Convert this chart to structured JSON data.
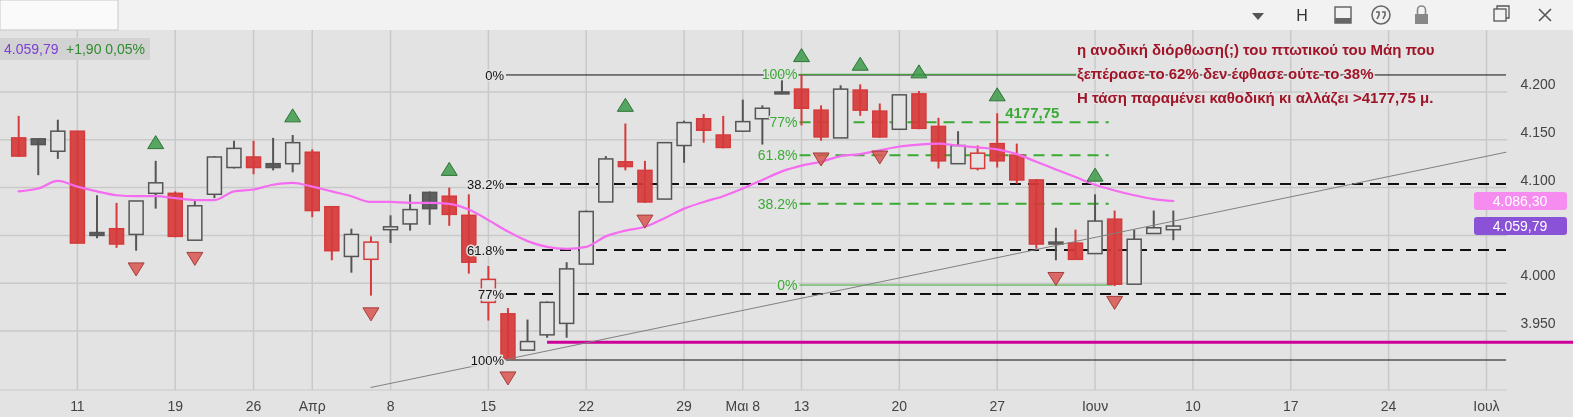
{
  "chart_data": {
    "type": "candlestick",
    "categories": [
      null,
      null,
      null,
      "11",
      null,
      null,
      null,
      null,
      "19",
      null,
      null,
      null,
      "26",
      null,
      null,
      "Απρ",
      null,
      null,
      null,
      "8",
      null,
      null,
      null,
      null,
      "15",
      null,
      null,
      null,
      null,
      "22",
      null,
      null,
      null,
      null,
      "29",
      null,
      null,
      "Μαι 8",
      null,
      null,
      "13",
      null,
      null,
      null,
      null,
      "20",
      null,
      null,
      null,
      null,
      "27",
      null,
      null,
      null,
      null,
      "Ιουν",
      null,
      null,
      null,
      null,
      "10",
      null,
      null,
      null,
      null,
      "17",
      null,
      null,
      null,
      null,
      "24",
      null,
      null,
      null,
      null,
      "Ιουλ",
      null
    ],
    "ohlc": [
      [
        4152,
        4175,
        4132,
        4133
      ],
      [
        4151,
        4151,
        4113,
        4145
      ],
      [
        4138,
        4171,
        4130,
        4159
      ],
      [
        4159,
        4159,
        4042,
        4042
      ],
      [
        4053,
        4092,
        4047,
        4050
      ],
      [
        4057,
        4084,
        4037,
        4041
      ],
      [
        4051,
        4086,
        4034,
        4086
      ],
      [
        4094,
        4128,
        4078,
        4105
      ],
      [
        4094,
        4096,
        4048,
        4049
      ],
      [
        4045,
        4086,
        4045,
        4081
      ],
      [
        4093,
        4133,
        4089,
        4132
      ],
      [
        4121,
        4149,
        4120,
        4141
      ],
      [
        4132,
        4149,
        4114,
        4121
      ],
      [
        4125,
        4152,
        4118,
        4121
      ],
      [
        4125,
        4155,
        4116,
        4147
      ],
      [
        4137,
        4140,
        4069,
        4076
      ],
      [
        4080,
        4080,
        4024,
        4034
      ],
      [
        4028,
        4057,
        4011,
        4051
      ],
      [
        4025,
        4049,
        3987,
        4043
      ],
      [
        4056,
        4071,
        4042,
        4059
      ],
      [
        4062,
        4093,
        4055,
        4077
      ],
      [
        4095,
        4096,
        4061,
        4078
      ],
      [
        4091,
        4100,
        4060,
        4072
      ],
      [
        4071,
        4093,
        4010,
        4022
      ],
      [
        3980,
        4018,
        3961,
        4004
      ],
      [
        3968,
        3974,
        3920,
        3921
      ],
      [
        3930,
        3962,
        3930,
        3939
      ],
      [
        3946,
        3981,
        3943,
        3980
      ],
      [
        3958,
        4022,
        3943,
        4015
      ],
      [
        4020,
        4076,
        4020,
        4075
      ],
      [
        4085,
        4133,
        4085,
        4130
      ],
      [
        4127,
        4167,
        4118,
        4122
      ],
      [
        4118,
        4128,
        4084,
        4085
      ],
      [
        4088,
        4147,
        4088,
        4147
      ],
      [
        4144,
        4170,
        4126,
        4168
      ],
      [
        4172,
        4177,
        4147,
        4160
      ],
      [
        4155,
        4175,
        4141,
        4142
      ],
      [
        4159,
        4192,
        4159,
        4169
      ],
      [
        4172,
        4186,
        4145,
        4183
      ],
      [
        4200,
        4216,
        4198,
        4198
      ],
      [
        4203,
        4218,
        4165,
        4183
      ],
      [
        4181,
        4186,
        4149,
        4153
      ],
      [
        4152,
        4207,
        4152,
        4203
      ],
      [
        4202,
        4208,
        4175,
        4181
      ],
      [
        4180,
        4188,
        4152,
        4153
      ],
      [
        4161,
        4197,
        4161,
        4197
      ],
      [
        4198,
        4201,
        4161,
        4162
      ],
      [
        4164,
        4173,
        4120,
        4128
      ],
      [
        4125,
        4159,
        4125,
        4144
      ],
      [
        4120,
        4144,
        4118,
        4136
      ],
      [
        4146,
        4177.75,
        4121,
        4128
      ],
      [
        4134,
        4146,
        4104,
        4108
      ],
      [
        4108,
        4109,
        4036,
        4041
      ],
      [
        4043,
        4058,
        4024,
        4041
      ],
      [
        4042,
        4056,
        4025,
        4025
      ],
      [
        4031,
        4093,
        4031,
        4065
      ],
      [
        4067,
        4076,
        3997,
        3999
      ],
      [
        3999,
        4056,
        3999,
        4046
      ],
      [
        4052,
        4076,
        4052,
        4058
      ],
      [
        4056,
        4076,
        4045,
        4059.79
      ],
      null,
      null,
      null,
      null,
      null,
      null,
      null,
      null,
      null,
      null,
      null,
      null,
      null,
      null,
      null,
      null,
      null
    ],
    "colors": [
      "#d63a3a",
      "#555555",
      "#555555",
      "#d63a3a",
      "#555555",
      "#d63a3a",
      "#555555",
      "#555555",
      "#d63a3a",
      "#555555",
      "#555555",
      "#555555",
      "#d63a3a",
      "#555555",
      "#555555",
      "#d63a3a",
      "#d63a3a",
      "#555555",
      "#d63a3a",
      "#555555",
      "#555555",
      "#555555",
      "#d63a3a",
      "#d63a3a",
      "#d63a3a",
      "#d63a3a",
      "#555555",
      "#555555",
      "#555555",
      "#555555",
      "#555555",
      "#d63a3a",
      "#d63a3a",
      "#555555",
      "#555555",
      "#d63a3a",
      "#d63a3a",
      "#555555",
      "#555555",
      "#555555",
      "#d63a3a",
      "#d63a3a",
      "#555555",
      "#d63a3a",
      "#d63a3a",
      "#555555",
      "#d63a3a",
      "#d63a3a",
      "#555555",
      "#d63a3a",
      "#d63a3a",
      "#d63a3a",
      "#d63a3a",
      "#555555",
      "#d63a3a",
      "#555555",
      "#d63a3a",
      "#555555",
      "#555555",
      "#555555",
      null,
      null,
      null,
      null,
      null,
      null,
      null,
      null,
      null,
      null,
      null,
      null,
      null,
      null,
      null,
      null,
      null
    ],
    "series": [
      {
        "type": "line",
        "color": "#f56cf0",
        "values": [
          4096,
          4099,
          4107,
          4101,
          4096,
          4092,
          4091,
          4091,
          4089,
          4087,
          4087,
          4096,
          4098,
          4103,
          4105,
          4101,
          4096,
          4091,
          4085,
          4085,
          4084,
          4084,
          4083,
          4077,
          4066,
          4054,
          4044,
          4038,
          4036,
          4038,
          4049,
          4055,
          4059,
          4068,
          4078,
          4085,
          4091,
          4099,
          4108,
          4117,
          4123,
          4127,
          4133,
          4135,
          4139,
          4143,
          4145,
          4146,
          4144,
          4142,
          4140,
          4135,
          4127,
          4119,
          4111,
          4103,
          4097,
          4092,
          4088,
          4086,
          null,
          null,
          null,
          null,
          null,
          null,
          null,
          null,
          null,
          null,
          null,
          null,
          null,
          null,
          null,
          null,
          null
        ]
      },
      {
        "type": "line",
        "color": "#808080",
        "values": [
          null,
          null,
          null,
          null,
          null,
          null,
          null,
          null,
          null,
          null,
          null,
          null,
          null,
          null,
          null,
          null,
          null,
          null,
          3891,
          null,
          null,
          null,
          null,
          null,
          null,
          null,
          null,
          null,
          null,
          null,
          null,
          null,
          null,
          null,
          null,
          null,
          null,
          null,
          null,
          null,
          null,
          null,
          null,
          null,
          null,
          null,
          null,
          null,
          null,
          null,
          null,
          null,
          null,
          null,
          null,
          null,
          null,
          null,
          null,
          null,
          null,
          null,
          null,
          null,
          null,
          null,
          null,
          null,
          null,
          null,
          null,
          null,
          null,
          null,
          null,
          null,
          4137
        ]
      },
      {
        "type": "scatter",
        "color": "#3d9a4a",
        "marker": "triangle",
        "values": [
          null,
          null,
          null,
          null,
          null,
          null,
          null,
          4146,
          null,
          null,
          null,
          null,
          null,
          null,
          4174,
          null,
          null,
          null,
          null,
          null,
          null,
          null,
          4118,
          null,
          null,
          null,
          null,
          null,
          null,
          null,
          null,
          4185,
          null,
          null,
          null,
          null,
          null,
          null,
          null,
          null,
          4237,
          null,
          null,
          4228,
          null,
          null,
          4220,
          null,
          null,
          null,
          4196,
          null,
          null,
          null,
          null,
          4112,
          null,
          null,
          null,
          null,
          null,
          null,
          null,
          null,
          null,
          null,
          null,
          null,
          null,
          null,
          null,
          null,
          null,
          null,
          null,
          null,
          null
        ]
      },
      {
        "type": "scatter",
        "color": "#d9534f",
        "marker": "triangle",
        "values": [
          null,
          null,
          null,
          null,
          null,
          null,
          4016,
          null,
          null,
          4027,
          null,
          null,
          null,
          null,
          null,
          null,
          null,
          null,
          3969,
          null,
          null,
          null,
          null,
          null,
          null,
          3902,
          null,
          null,
          null,
          null,
          null,
          null,
          4066,
          null,
          null,
          null,
          null,
          null,
          null,
          null,
          null,
          4131,
          null,
          null,
          4133,
          null,
          null,
          null,
          null,
          null,
          null,
          null,
          null,
          4006,
          null,
          null,
          3981,
          null,
          null,
          null,
          null,
          null,
          null,
          null,
          null,
          null,
          null,
          null,
          null,
          null,
          null,
          null,
          null,
          null,
          null,
          null,
          null
        ]
      }
    ],
    "ylim": [
      3890,
      4262
    ],
    "yticks": [
      {
        "value": 3950,
        "label": "3.950"
      },
      {
        "value": 4000,
        "label": "4.000"
      },
      {
        "value": 4050,
        "label": null
      },
      {
        "value": 4100,
        "label": "4.100"
      },
      {
        "value": 4150,
        "label": "4.150"
      },
      {
        "value": 4200,
        "label": "4.200"
      }
    ],
    "grid": true,
    "ref_lines": [
      {
        "axis": "y",
        "value": 4217.8,
        "color": "#111111",
        "line_style": "solid"
      },
      {
        "axis": "y",
        "value": 4103.8,
        "color": "#111111",
        "line_style": "dashed"
      },
      {
        "axis": "y",
        "value": 4034.8,
        "color": "#111111",
        "line_style": "dashed"
      },
      {
        "axis": "y",
        "value": 3988.7,
        "color": "#111111",
        "line_style": "dashed"
      },
      {
        "axis": "y",
        "value": 3919.7,
        "color": "#111111",
        "line_style": "solid"
      },
      {
        "axis": "y",
        "value": 4218.5,
        "color": "#3aaa35",
        "line_style": "solid"
      },
      {
        "axis": "y",
        "value": 4168.3,
        "color": "#3aaa35",
        "line_style": "dashed"
      },
      {
        "axis": "y",
        "value": 4133.8,
        "color": "#3aaa35",
        "line_style": "dashed"
      },
      {
        "axis": "y",
        "value": 4083.2,
        "color": "#3aaa35",
        "line_style": "dashed"
      },
      {
        "axis": "y",
        "value": 3998.1,
        "color": "#3aaa35",
        "line_style": "solid"
      },
      {
        "axis": "y",
        "value": 3938.2,
        "color": "#cc0099",
        "line_style": "solid"
      }
    ],
    "annotations": [
      "4.059,79",
      "+1,90 0,05%",
      "η ανοδική διόρθωση(;) του πτωτικού του Μάη που\nξεπέρασε το 62% δεν έφθασε ούτε το 38%\nΗ τάση παραμένει καθοδική κι αλλάζει >4177,75 μ.",
      "4177,75",
      "4.086,30",
      "4.059,79",
      "H",
      "0%",
      "38.2%",
      "61.8%",
      "77%",
      "100%",
      "100%",
      "77%",
      "61.8%",
      "38.2%",
      "0%"
    ]
  }
}
